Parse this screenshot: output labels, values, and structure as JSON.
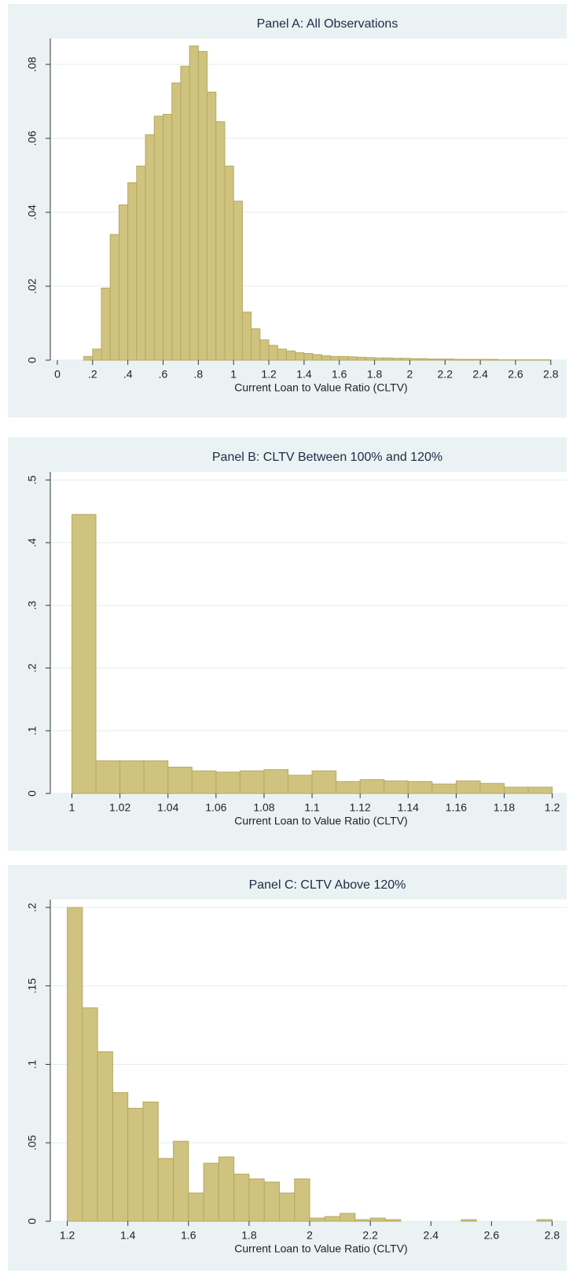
{
  "chart_data": [
    {
      "type": "histogram",
      "title": "Panel A: All Observations",
      "x_label": "Current Loan to Value Ratio (CLTV)",
      "color": "#cfc37f",
      "bins": [
        0.15,
        0.2,
        0.25,
        0.3,
        0.35,
        0.4,
        0.45,
        0.5,
        0.55,
        0.6,
        0.65,
        0.7,
        0.75,
        0.8,
        0.85,
        0.9,
        0.95,
        1,
        1.05,
        1.1,
        1.15,
        1.2,
        1.25,
        1.3,
        1.35,
        1.4,
        1.45,
        1.5,
        1.55,
        1.6,
        1.65,
        1.7,
        1.75,
        1.8,
        1.85,
        1.9,
        1.95,
        2,
        2.05,
        2.1,
        2.15,
        2.2,
        2.25,
        2.3,
        2.35,
        2.4,
        2.45,
        2.5,
        2.55,
        2.6,
        2.65,
        2.7,
        2.75,
        2.8
      ],
      "values": [
        0.001,
        0.003,
        0.0195,
        0.034,
        0.042,
        0.048,
        0.0525,
        0.061,
        0.066,
        0.0665,
        0.075,
        0.0795,
        0.085,
        0.0835,
        0.0725,
        0.0645,
        0.0525,
        0.043,
        0.013,
        0.0085,
        0.0055,
        0.004,
        0.003,
        0.0025,
        0.002,
        0.0018,
        0.0015,
        0.0012,
        0.001,
        0.001,
        0.0009,
        0.0008,
        0.0007,
        0.0006,
        0.0006,
        0.0005,
        0.0005,
        0.0004,
        0.0004,
        0.0003,
        0.0003,
        0.0003,
        0.0002,
        0.0002,
        0.0002,
        0.0002,
        0.0002,
        0.0001,
        0.0001,
        0.0001,
        0.0001,
        0.0001,
        0.0001
      ],
      "xlim": [
        -0.04,
        2.89
      ],
      "ylim": [
        0,
        0.087
      ],
      "xticks": [
        0,
        {
          "value": 0.2,
          "label": ".2"
        },
        {
          "value": 0.4,
          "label": ".4"
        },
        {
          "value": 0.6,
          "label": ".6"
        },
        {
          "value": 0.8,
          "label": ".8"
        },
        1,
        1.2,
        1.4,
        1.6,
        1.8,
        2,
        2.2,
        2.4,
        2.6,
        2.8
      ],
      "yticks": [
        0,
        {
          "value": 0.02,
          "label": ".02"
        },
        {
          "value": 0.04,
          "label": ".04"
        },
        {
          "value": 0.06,
          "label": ".06"
        },
        {
          "value": 0.08,
          "label": ".08"
        }
      ],
      "grid": true
    },
    {
      "type": "histogram",
      "title": "Panel B: CLTV Between 100% and 120%",
      "x_label": "Current Loan to Value Ratio (CLTV)",
      "color": "#cfc37f",
      "bins": [
        1,
        1.01,
        1.02,
        1.03,
        1.04,
        1.05,
        1.06,
        1.07,
        1.08,
        1.09,
        1.1,
        1.11,
        1.12,
        1.13,
        1.14,
        1.15,
        1.16,
        1.17,
        1.18,
        1.19,
        1.2
      ],
      "values": [
        0.445,
        0.052,
        0.052,
        0.052,
        0.042,
        0.036,
        0.034,
        0.036,
        0.038,
        0.029,
        0.036,
        0.019,
        0.022,
        0.02,
        0.019,
        0.015,
        0.02,
        0.016,
        0.01,
        0.01
      ],
      "xlim": [
        0.991,
        1.206
      ],
      "ylim": [
        0,
        0.513
      ],
      "xticks": [
        1,
        1.02,
        1.04,
        1.06,
        1.08,
        1.1,
        1.12,
        1.14,
        1.16,
        1.18,
        1.2
      ],
      "yticks": [
        0,
        {
          "value": 0.1,
          "label": ".1"
        },
        {
          "value": 0.2,
          "label": ".2"
        },
        {
          "value": 0.3,
          "label": ".3"
        },
        {
          "value": 0.4,
          "label": ".4"
        },
        {
          "value": 0.5,
          "label": ".5"
        }
      ],
      "grid": true
    },
    {
      "type": "histogram",
      "title": "Panel C: CLTV Above 120%",
      "x_label": "Current Loan to Value Ratio (CLTV)",
      "color": "#cfc37f",
      "bins": [
        1.2,
        1.25,
        1.3,
        1.35,
        1.4,
        1.45,
        1.5,
        1.55,
        1.6,
        1.65,
        1.7,
        1.75,
        1.8,
        1.85,
        1.9,
        1.95,
        2,
        2.05,
        2.1,
        2.15,
        2.2,
        2.25,
        2.3,
        2.35,
        2.4,
        2.45,
        2.5,
        2.55,
        2.6,
        2.65,
        2.7,
        2.75,
        2.8
      ],
      "values": [
        0.2,
        0.136,
        0.108,
        0.082,
        0.072,
        0.076,
        0.04,
        0.051,
        0.018,
        0.037,
        0.041,
        0.03,
        0.027,
        0.025,
        0.018,
        0.027,
        0.002,
        0.003,
        0.005,
        0.001,
        0.002,
        0.001,
        0,
        0,
        0,
        0,
        0.001,
        0,
        0,
        0,
        0,
        0.001
      ],
      "xlim": [
        1.144,
        2.848
      ],
      "ylim": [
        0,
        0.205
      ],
      "xticks": [
        1.2,
        1.4,
        1.6,
        1.8,
        2,
        2.2,
        2.4,
        2.6,
        2.8
      ],
      "yticks": [
        0,
        {
          "value": 0.05,
          "label": ".05"
        },
        {
          "value": 0.1,
          "label": ".1"
        },
        {
          "value": 0.15,
          "label": ".15"
        },
        {
          "value": 0.2,
          "label": ".2"
        }
      ],
      "grid": true
    }
  ]
}
